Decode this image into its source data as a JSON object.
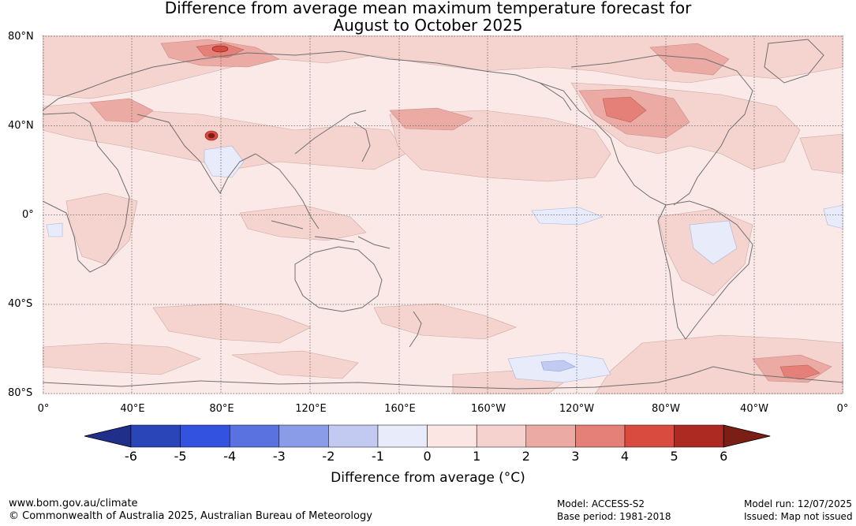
{
  "title_line1": "Difference from average mean maximum temperature forecast for",
  "title_line2": "August to October 2025",
  "lat_labels": [
    "80°N",
    "40°N",
    "0°",
    "40°S",
    "80°S"
  ],
  "lon_labels": [
    "0°",
    "40°E",
    "80°E",
    "120°E",
    "160°E",
    "160°W",
    "120°W",
    "80°W",
    "40°W",
    "0°"
  ],
  "colorbar": {
    "ticks": [
      "-6",
      "-5",
      "-4",
      "-3",
      "-2",
      "-1",
      "0",
      "1",
      "2",
      "3",
      "4",
      "5",
      "6"
    ],
    "colors": [
      "#1f2f8a",
      "#2a45b8",
      "#3352e0",
      "#5a72e0",
      "#8a9be8",
      "#c2caf2",
      "#e8ebfa",
      "#fbe6e3",
      "#f5d2cd",
      "#ecaaa4",
      "#e48078",
      "#d94a3f",
      "#ad2a22",
      "#7a1e16"
    ],
    "title": "Difference from average (°C)"
  },
  "footer": {
    "website": "www.bom.gov.au/climate",
    "copyright": "© Commonwealth of Australia 2025, Australian Bureau of Meteorology",
    "model": "Model: ACCESS-S2",
    "base_period": "Base period: 1981-2018",
    "model_run": "Model run: 12/07/2025",
    "issued": "Issued: Map not issued"
  }
}
